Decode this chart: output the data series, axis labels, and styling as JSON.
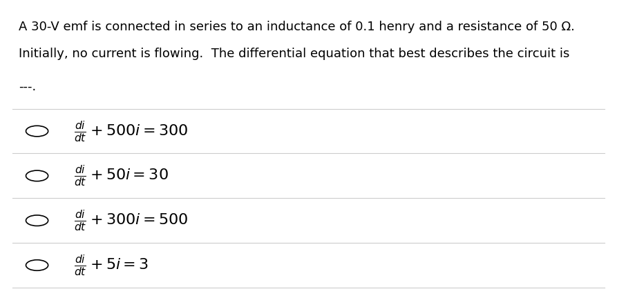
{
  "background_color": "#ffffff",
  "text_color": "#000000",
  "title_line1": "A 30-V emf is connected in series to an inductance of 0.1 henry and a resistance of 50 Ω.",
  "title_line2": "Initially, no current is flowing.  The differential equation that best describes the circuit is",
  "blank_line": "---.",
  "options": [
    "\\frac{di}{dt} + 500i = 300",
    "\\frac{di}{dt} + 50i = 30",
    "\\frac{di}{dt} + 300i = 500",
    "\\frac{di}{dt} + 5i = 3"
  ],
  "divider_color": "#cccccc",
  "circle_color": "#000000",
  "text_fontsize": 13,
  "math_fontsize": 16,
  "fig_width": 8.93,
  "fig_height": 4.32,
  "dpi": 100
}
